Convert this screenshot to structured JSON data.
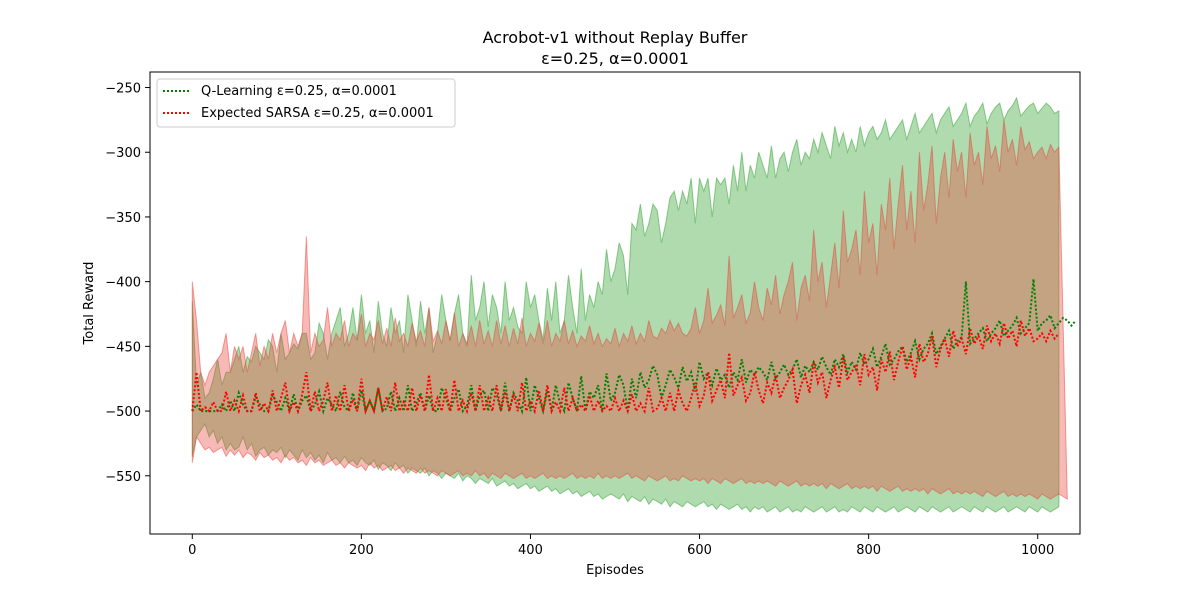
{
  "chart_data": {
    "type": "line",
    "title": "Acrobot-v1 without Replay Buffer",
    "subtitle": "ε=0.25, α=0.0001",
    "xlabel": "Episodes",
    "ylabel": "Total Reward",
    "xlim": [
      -50,
      1050
    ],
    "ylim": [
      -595,
      -238
    ],
    "xticks": [
      0,
      200,
      400,
      600,
      800,
      1000
    ],
    "yticks": [
      -550,
      -500,
      -450,
      -400,
      -350,
      -300,
      -250
    ],
    "xtick_labels": [
      "0",
      "200",
      "400",
      "600",
      "800",
      "1000"
    ],
    "ytick_labels": [
      "−550",
      "−500",
      "−450",
      "−400",
      "−350",
      "−300",
      "−250"
    ],
    "legend_position": "top-left",
    "grid": false,
    "x_step": 5,
    "series": [
      {
        "name": "Q-Learning ε=0.25, α=0.0001",
        "color": "#008000",
        "band_color": "#2ca02c",
        "mean": [
          -500,
          -495,
          -500,
          -500,
          -500,
          -500,
          -500,
          -495,
          -500,
          -492,
          -500,
          -486,
          -495,
          -500,
          -500,
          -489,
          -495,
          -500,
          -500,
          -488,
          -493,
          -500,
          -490,
          -500,
          -487,
          -500,
          -492,
          -488,
          -500,
          -495,
          -485,
          -500,
          -490,
          -495,
          -500,
          -485,
          -497,
          -500,
          -486,
          -500,
          -484,
          -500,
          -492,
          -500,
          -482,
          -500,
          -498,
          -485,
          -500,
          -490,
          -500,
          -480,
          -500,
          -494,
          -486,
          -500,
          -488,
          -500,
          -500,
          -482,
          -490,
          -500,
          -490,
          -483,
          -500,
          -496,
          -480,
          -500,
          -488,
          -484,
          -500,
          -482,
          -487,
          -500,
          -478,
          -500,
          -486,
          -492,
          -500,
          -474,
          -500,
          -480,
          -490,
          -500,
          -484,
          -500,
          -480,
          -494,
          -500,
          -478,
          -490,
          -500,
          -473,
          -500,
          -485,
          -490,
          -480,
          -500,
          -471,
          -492,
          -486,
          -472,
          -480,
          -500,
          -475,
          -490,
          -470,
          -482,
          -476,
          -465,
          -472,
          -490,
          -480,
          -468,
          -474,
          -482,
          -466,
          -477,
          -470,
          -485,
          -462,
          -475,
          -470,
          -480,
          -467,
          -476,
          -472,
          -482,
          -470,
          -476,
          -460,
          -478,
          -468,
          -472,
          -466,
          -470,
          -476,
          -462,
          -475,
          -470,
          -464,
          -472,
          -468,
          -460,
          -474,
          -465,
          -470,
          -462,
          -468,
          -458,
          -466,
          -472,
          -460,
          -466,
          -456,
          -470,
          -462,
          -468,
          -455,
          -464,
          -460,
          -452,
          -466,
          -458,
          -448,
          -464,
          -460,
          -454,
          -450,
          -462,
          -455,
          -446,
          -460,
          -452,
          -448,
          -440,
          -456,
          -450,
          -444,
          -438,
          -452,
          -446,
          -443,
          -400,
          -448,
          -444,
          -440,
          -436,
          -446,
          -440,
          -436,
          -430,
          -442,
          -438,
          -434,
          -428,
          -440,
          -436,
          -432,
          -398,
          -438,
          -432,
          -430,
          -426,
          -436,
          -432,
          -428,
          -430,
          -434,
          -430
        ]
      },
      {
        "name": "Expected SARSA ε=0.25, α=0.0001",
        "color": "#ff0000",
        "band_color": "#e8463c",
        "mean": [
          -500,
          -470,
          -500,
          -497,
          -500,
          -493,
          -500,
          -500,
          -485,
          -500,
          -492,
          -500,
          -488,
          -500,
          -500,
          -486,
          -500,
          -494,
          -500,
          -484,
          -500,
          -490,
          -478,
          -500,
          -493,
          -500,
          -487,
          -470,
          -500,
          -485,
          -500,
          -492,
          -478,
          -500,
          -488,
          -500,
          -480,
          -500,
          -491,
          -500,
          -475,
          -500,
          -492,
          -500,
          -482,
          -500,
          -489,
          -500,
          -478,
          -500,
          -493,
          -500,
          -482,
          -500,
          -488,
          -500,
          -472,
          -500,
          -490,
          -500,
          -483,
          -500,
          -476,
          -500,
          -492,
          -500,
          -486,
          -500,
          -480,
          -500,
          -490,
          -500,
          -480,
          -500,
          -485,
          -500,
          -487,
          -500,
          -478,
          -500,
          -492,
          -500,
          -484,
          -500,
          -480,
          -500,
          -493,
          -500,
          -482,
          -500,
          -490,
          -500,
          -495,
          -500,
          -488,
          -500,
          -492,
          -500,
          -496,
          -500,
          -490,
          -500,
          -492,
          -500,
          -487,
          -500,
          -494,
          -500,
          -482,
          -500,
          -498,
          -490,
          -500,
          -486,
          -500,
          -484,
          -494,
          -500,
          -490,
          -478,
          -496,
          -488,
          -470,
          -492,
          -484,
          -476,
          -490,
          -455,
          -488,
          -480,
          -474,
          -492,
          -486,
          -470,
          -484,
          -494,
          -478,
          -486,
          -472,
          -490,
          -482,
          -476,
          -468,
          -494,
          -480,
          -472,
          -486,
          -462,
          -478,
          -470,
          -490,
          -476,
          -466,
          -482,
          -458,
          -476,
          -470,
          -464,
          -480,
          -456,
          -472,
          -466,
          -484,
          -460,
          -470,
          -454,
          -476,
          -462,
          -450,
          -468,
          -458,
          -474,
          -448,
          -462,
          -456,
          -442,
          -466,
          -452,
          -444,
          -458,
          -438,
          -450,
          -444,
          -456,
          -436,
          -448,
          -442,
          -452,
          -434,
          -446,
          -440,
          -448,
          -432,
          -444,
          -438,
          -450,
          -430,
          -442,
          -436,
          -446,
          -444,
          -440,
          -446,
          -438,
          -444,
          -440
        ]
      }
    ],
    "band": {
      "q_hi": [
        -415,
        -480,
        -470,
        -490,
        -486,
        -475,
        -460,
        -480,
        -470,
        -470,
        -460,
        -450,
        -470,
        -458,
        -462,
        -450,
        -455,
        -460,
        -445,
        -450,
        -470,
        -440,
        -460,
        -455,
        -448,
        -452,
        -440,
        -440,
        -460,
        -455,
        -432,
        -440,
        -460,
        -440,
        -430,
        -420,
        -450,
        -440,
        -420,
        -445,
        -410,
        -440,
        -430,
        -455,
        -415,
        -440,
        -450,
        -420,
        -440,
        -430,
        -455,
        -410,
        -430,
        -450,
        -415,
        -440,
        -420,
        -455,
        -440,
        -410,
        -430,
        -445,
        -425,
        -410,
        -440,
        -450,
        -395,
        -430,
        -420,
        -400,
        -435,
        -410,
        -420,
        -440,
        -400,
        -430,
        -420,
        -435,
        -440,
        -400,
        -420,
        -410,
        -430,
        -445,
        -405,
        -430,
        -400,
        -440,
        -430,
        -395,
        -420,
        -440,
        -390,
        -430,
        -410,
        -420,
        -400,
        -410,
        -375,
        -400,
        -390,
        -370,
        -380,
        -410,
        -355,
        -360,
        -340,
        -365,
        -355,
        -340,
        -345,
        -370,
        -355,
        -335,
        -330,
        -345,
        -330,
        -340,
        -320,
        -355,
        -320,
        -330,
        -320,
        -350,
        -320,
        -325,
        -320,
        -340,
        -310,
        -330,
        -300,
        -330,
        -310,
        -320,
        -300,
        -310,
        -320,
        -295,
        -320,
        -305,
        -300,
        -315,
        -300,
        -290,
        -310,
        -300,
        -305,
        -290,
        -300,
        -285,
        -295,
        -305,
        -280,
        -295,
        -285,
        -300,
        -290,
        -300,
        -280,
        -295,
        -285,
        -280,
        -290,
        -285,
        -275,
        -290,
        -285,
        -280,
        -275,
        -290,
        -280,
        -270,
        -285,
        -280,
        -275,
        -270,
        -285,
        -275,
        -270,
        -265,
        -280,
        -275,
        -270,
        -262,
        -280,
        -272,
        -268,
        -262,
        -278,
        -270,
        -265,
        -262,
        -275,
        -268,
        -264,
        -258,
        -272,
        -268,
        -264,
        -262,
        -270,
        -266,
        -262,
        -265,
        -270,
        -268
      ],
      "q_lo": [
        -535,
        -520,
        -515,
        -510,
        -520,
        -515,
        -525,
        -520,
        -530,
        -525,
        -530,
        -528,
        -520,
        -530,
        -525,
        -535,
        -530,
        -528,
        -534,
        -530,
        -532,
        -528,
        -536,
        -530,
        -534,
        -538,
        -530,
        -536,
        -532,
        -538,
        -534,
        -540,
        -532,
        -538,
        -536,
        -540,
        -535,
        -540,
        -538,
        -542,
        -536,
        -540,
        -542,
        -538,
        -545,
        -540,
        -542,
        -546,
        -540,
        -544,
        -542,
        -548,
        -544,
        -546,
        -548,
        -544,
        -550,
        -546,
        -548,
        -552,
        -548,
        -550,
        -552,
        -548,
        -554,
        -550,
        -552,
        -556,
        -552,
        -554,
        -556,
        -552,
        -558,
        -556,
        -554,
        -558,
        -556,
        -560,
        -558,
        -556,
        -560,
        -558,
        -562,
        -560,
        -558,
        -562,
        -560,
        -564,
        -562,
        -560,
        -564,
        -562,
        -566,
        -564,
        -562,
        -566,
        -564,
        -568,
        -566,
        -564,
        -566,
        -568,
        -564,
        -570,
        -566,
        -568,
        -570,
        -566,
        -572,
        -568,
        -570,
        -572,
        -568,
        -574,
        -570,
        -572,
        -574,
        -570,
        -572,
        -574,
        -572,
        -570,
        -574,
        -572,
        -576,
        -572,
        -574,
        -576,
        -574,
        -572,
        -576,
        -574,
        -578,
        -574,
        -576,
        -574,
        -578,
        -576,
        -574,
        -578,
        -576,
        -574,
        -578,
        -576,
        -578,
        -574,
        -576,
        -578,
        -576,
        -574,
        -578,
        -576,
        -574,
        -578,
        -576,
        -578,
        -574,
        -576,
        -578,
        -574,
        -576,
        -578,
        -574,
        -576,
        -578,
        -576,
        -574,
        -578,
        -576,
        -574,
        -576,
        -578,
        -574,
        -576,
        -578,
        -574,
        -576,
        -578,
        -576,
        -574,
        -578,
        -576,
        -574,
        -576,
        -578,
        -574,
        -576,
        -578,
        -574,
        -576,
        -578,
        -576,
        -574,
        -578,
        -576,
        -574,
        -576,
        -578,
        -574,
        -576,
        -578,
        -574,
        -576,
        -578,
        -576,
        -574
      ],
      "s_hi": [
        -400,
        -430,
        -470,
        -480,
        -470,
        -465,
        -460,
        -455,
        -440,
        -470,
        -450,
        -460,
        -450,
        -470,
        -455,
        -440,
        -465,
        -450,
        -460,
        -440,
        -455,
        -440,
        -430,
        -455,
        -440,
        -450,
        -440,
        -365,
        -455,
        -440,
        -450,
        -445,
        -420,
        -450,
        -440,
        -445,
        -430,
        -450,
        -440,
        -445,
        -425,
        -450,
        -440,
        -445,
        -430,
        -448,
        -436,
        -450,
        -428,
        -446,
        -440,
        -450,
        -432,
        -446,
        -438,
        -450,
        -420,
        -446,
        -438,
        -448,
        -430,
        -446,
        -424,
        -450,
        -440,
        -448,
        -434,
        -450,
        -430,
        -448,
        -438,
        -450,
        -430,
        -448,
        -434,
        -450,
        -436,
        -448,
        -428,
        -450,
        -440,
        -446,
        -432,
        -448,
        -430,
        -450,
        -440,
        -446,
        -430,
        -448,
        -438,
        -450,
        -442,
        -446,
        -434,
        -448,
        -440,
        -450,
        -444,
        -448,
        -436,
        -450,
        -440,
        -446,
        -434,
        -448,
        -440,
        -446,
        -430,
        -442,
        -444,
        -436,
        -440,
        -430,
        -438,
        -432,
        -440,
        -442,
        -436,
        -420,
        -440,
        -430,
        -405,
        -432,
        -426,
        -418,
        -434,
        -380,
        -428,
        -420,
        -410,
        -432,
        -424,
        -400,
        -420,
        -430,
        -405,
        -418,
        -395,
        -425,
        -410,
        -400,
        -385,
        -430,
        -405,
        -395,
        -415,
        -360,
        -400,
        -385,
        -420,
        -395,
        -370,
        -405,
        -345,
        -385,
        -375,
        -360,
        -395,
        -330,
        -370,
        -355,
        -395,
        -340,
        -360,
        -320,
        -375,
        -340,
        -310,
        -360,
        -330,
        -370,
        -300,
        -345,
        -325,
        -295,
        -355,
        -320,
        -300,
        -335,
        -290,
        -315,
        -300,
        -335,
        -285,
        -310,
        -300,
        -325,
        -280,
        -305,
        -295,
        -315,
        -275,
        -300,
        -290,
        -310,
        -280,
        -298,
        -292,
        -305,
        -300,
        -296,
        -305,
        -294,
        -300,
        -296
      ],
      "s_lo": [
        -540,
        -520,
        -525,
        -530,
        -528,
        -532,
        -530,
        -528,
        -535,
        -530,
        -534,
        -530,
        -536,
        -532,
        -534,
        -538,
        -532,
        -536,
        -534,
        -538,
        -536,
        -540,
        -534,
        -538,
        -536,
        -540,
        -538,
        -542,
        -536,
        -540,
        -538,
        -542,
        -540,
        -538,
        -542,
        -540,
        -544,
        -540,
        -542,
        -544,
        -542,
        -546,
        -540,
        -544,
        -542,
        -546,
        -544,
        -542,
        -546,
        -544,
        -548,
        -544,
        -546,
        -548,
        -544,
        -548,
        -546,
        -548,
        -550,
        -546,
        -548,
        -550,
        -548,
        -546,
        -550,
        -548,
        -550,
        -546,
        -550,
        -548,
        -552,
        -548,
        -550,
        -552,
        -548,
        -550,
        -552,
        -550,
        -548,
        -552,
        -550,
        -552,
        -550,
        -548,
        -552,
        -550,
        -552,
        -550,
        -552,
        -550,
        -548,
        -552,
        -550,
        -552,
        -550,
        -552,
        -548,
        -552,
        -550,
        -552,
        -550,
        -552,
        -550,
        -548,
        -552,
        -550,
        -552,
        -554,
        -550,
        -552,
        -554,
        -552,
        -550,
        -554,
        -552,
        -554,
        -550,
        -552,
        -554,
        -552,
        -554,
        -552,
        -556,
        -552,
        -554,
        -556,
        -552,
        -554,
        -556,
        -554,
        -552,
        -556,
        -554,
        -556,
        -554,
        -556,
        -554,
        -556,
        -558,
        -554,
        -556,
        -558,
        -556,
        -554,
        -558,
        -556,
        -558,
        -556,
        -558,
        -556,
        -560,
        -556,
        -558,
        -560,
        -558,
        -556,
        -560,
        -558,
        -560,
        -558,
        -560,
        -558,
        -562,
        -558,
        -560,
        -562,
        -560,
        -558,
        -562,
        -560,
        -562,
        -560,
        -562,
        -560,
        -564,
        -560,
        -562,
        -564,
        -562,
        -560,
        -564,
        -562,
        -564,
        -562,
        -564,
        -562,
        -564,
        -566,
        -562,
        -564,
        -566,
        -564,
        -562,
        -566,
        -564,
        -566,
        -564,
        -566,
        -564,
        -566,
        -568,
        -564,
        -566,
        -568,
        -566,
        -564,
        -566,
        -568
      ]
    }
  }
}
